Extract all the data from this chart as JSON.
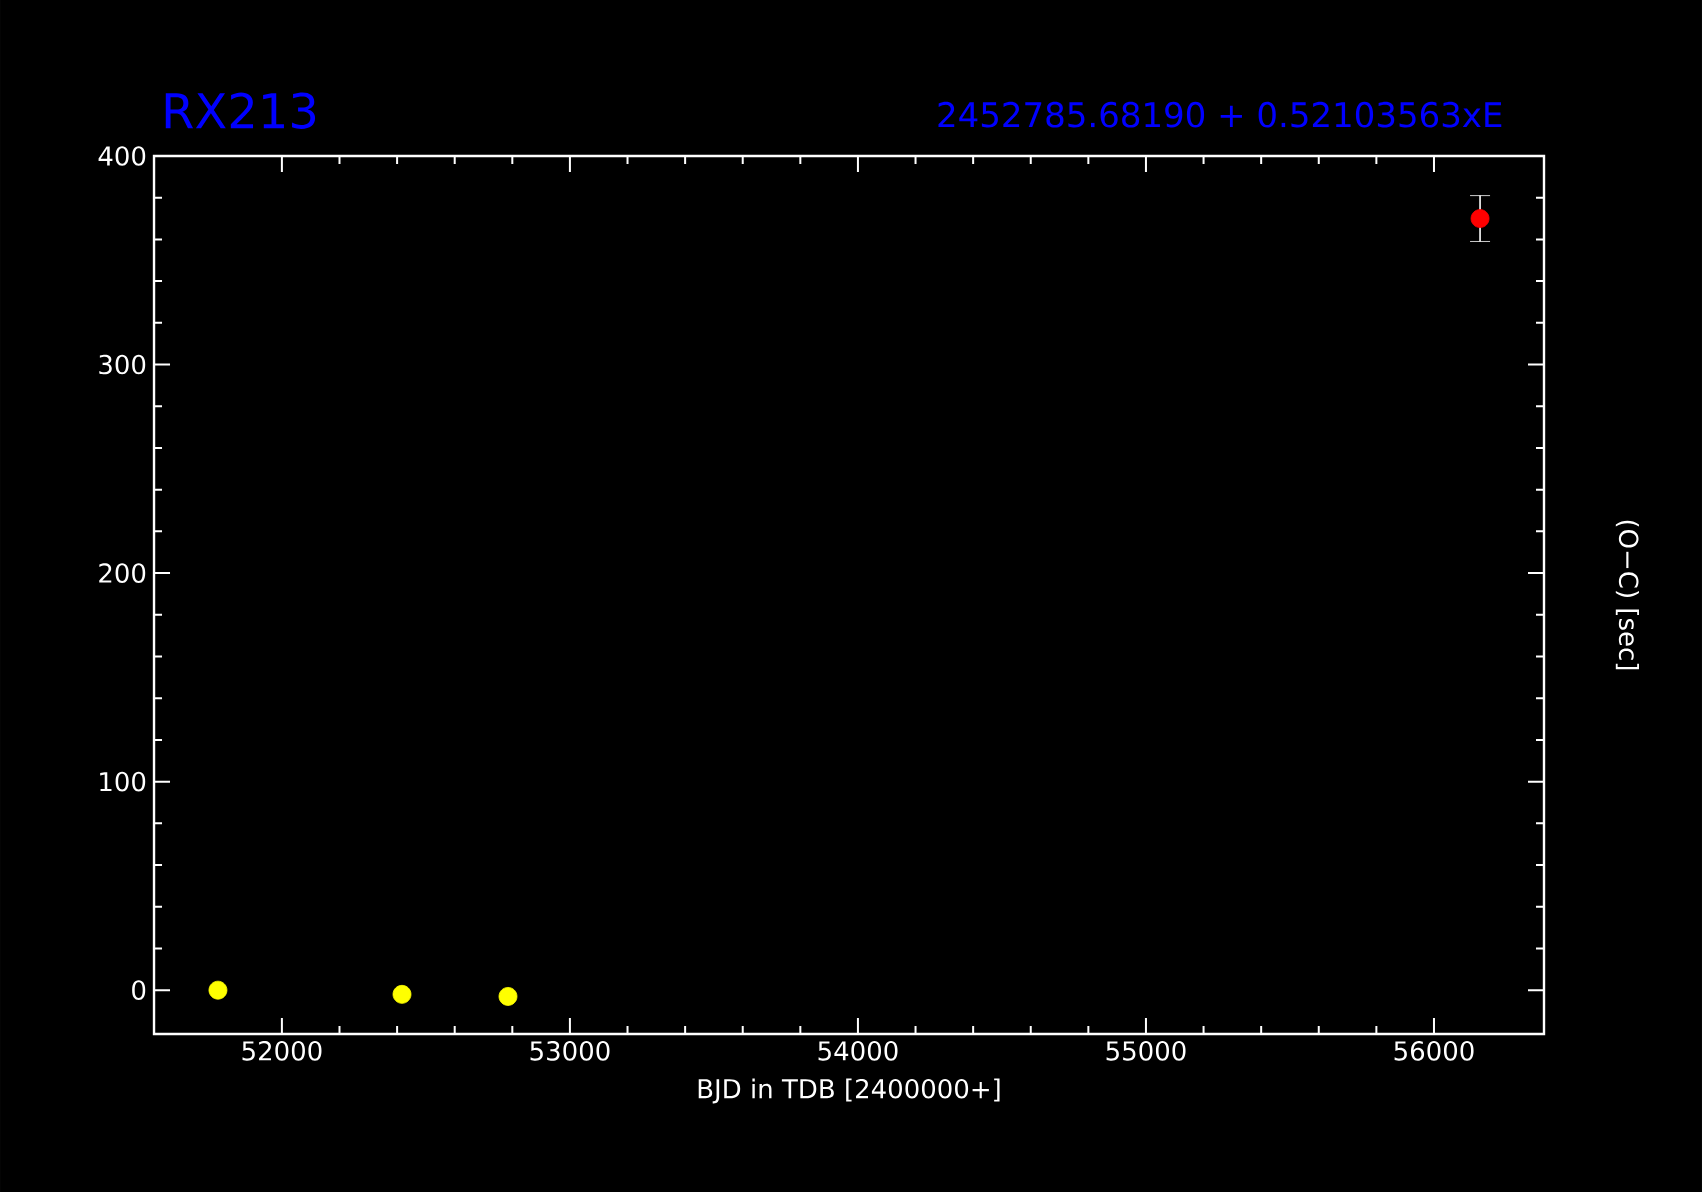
{
  "chart_data": {
    "type": "scatter",
    "title": "RX213",
    "subtitle": "2452785.68190 +   0.52103563xE",
    "xlabel": "BJD in TDB [2400000+]",
    "ylabel": "(O−C) [sec]",
    "xlim": [
      51556,
      56382
    ],
    "ylim": [
      -21,
      400
    ],
    "xticks": [
      52000,
      53000,
      54000,
      55000,
      56000
    ],
    "yticks": [
      0,
      100,
      200,
      300,
      400
    ],
    "marker": "circle",
    "grid": false,
    "series": [
      {
        "color": "#ffff00",
        "x": [
          51778,
          52417,
          52785
        ],
        "values": [
          0,
          -2,
          -3
        ]
      },
      {
        "color": "#ff0000",
        "x": [
          56160
        ],
        "values": [
          370
        ],
        "errors": [
          11
        ]
      }
    ]
  }
}
